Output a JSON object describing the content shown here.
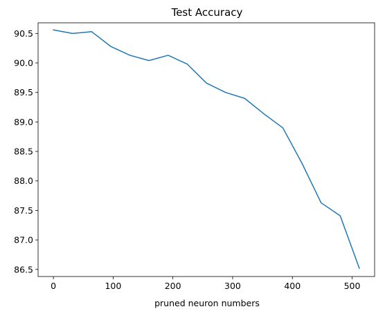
{
  "chart_data": {
    "type": "line",
    "title": "Test Accuracy",
    "xlabel": "pruned neuron numbers",
    "ylabel": "",
    "xlim": [
      -25.6,
      537.6
    ],
    "ylim": [
      86.38,
      90.68
    ],
    "xticks": [
      0,
      100,
      200,
      300,
      400,
      500
    ],
    "xtick_labels": [
      "0",
      "100",
      "200",
      "300",
      "400",
      "500"
    ],
    "yticks": [
      86.5,
      87.0,
      87.5,
      88.0,
      88.5,
      89.0,
      89.5,
      90.0,
      90.5
    ],
    "ytick_labels": [
      "86.5",
      "87.0",
      "87.5",
      "88.0",
      "88.5",
      "89.0",
      "89.5",
      "90.0",
      "90.5"
    ],
    "grid": false,
    "series": [
      {
        "color": "#1f77b4",
        "x": [
          0,
          32,
          64,
          96,
          128,
          160,
          192,
          224,
          256,
          288,
          320,
          352,
          384,
          416,
          448,
          480,
          512
        ],
        "y": [
          90.56,
          90.5,
          90.53,
          90.28,
          90.13,
          90.04,
          90.13,
          89.98,
          89.66,
          89.5,
          89.4,
          89.14,
          88.9,
          88.3,
          87.63,
          87.41,
          86.52
        ]
      }
    ]
  }
}
